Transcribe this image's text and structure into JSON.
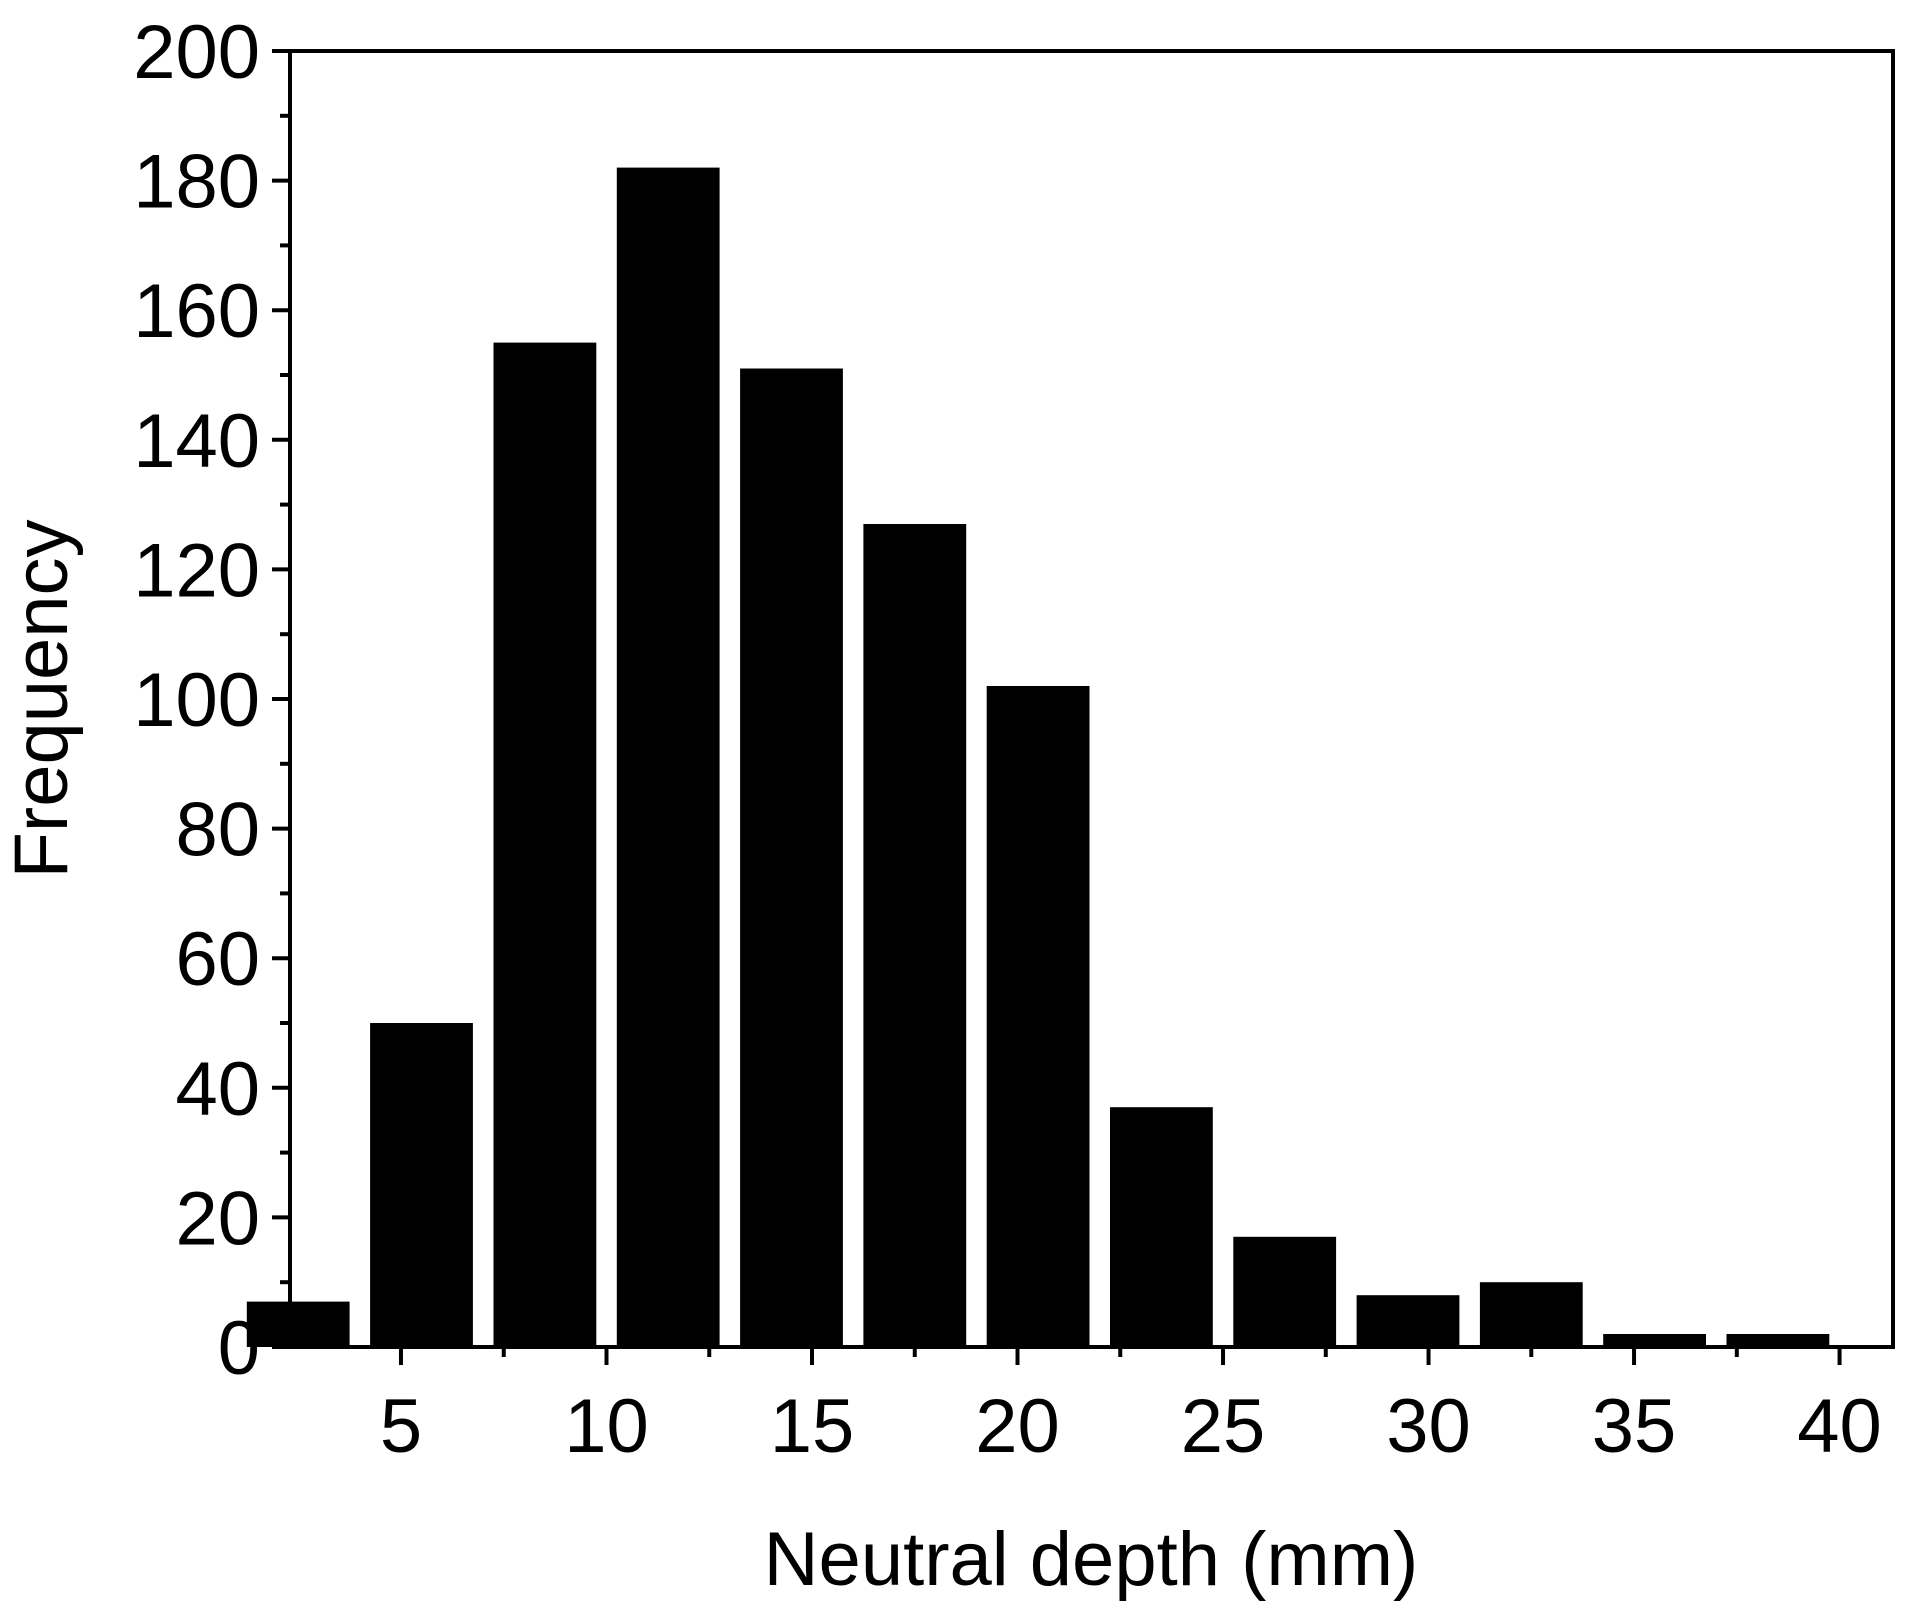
{
  "chart_data": {
    "type": "bar",
    "title": "",
    "xlabel": "Neutral depth (mm)",
    "ylabel": "Frequency",
    "bin_centers": [
      2.5,
      5.5,
      8.5,
      11.5,
      14.5,
      17.5,
      20.5,
      23.5,
      26.5,
      29.5,
      32.5,
      35.5,
      38.5,
      41.5
    ],
    "values": [
      7,
      50,
      155,
      182,
      151,
      127,
      102,
      37,
      17,
      8,
      10,
      2,
      2,
      0
    ],
    "bin_width": 2.5,
    "xlim": [
      2.3,
      41.3
    ],
    "ylim": [
      0,
      200
    ],
    "x_ticks": [
      "5",
      "10",
      "15",
      "20",
      "25",
      "30",
      "35",
      "40"
    ],
    "y_ticks": [
      "0",
      "20",
      "40",
      "60",
      "80",
      "100",
      "120",
      "140",
      "160",
      "180",
      "200"
    ],
    "grid": false,
    "legend": "none",
    "bar_color": "#000000"
  }
}
